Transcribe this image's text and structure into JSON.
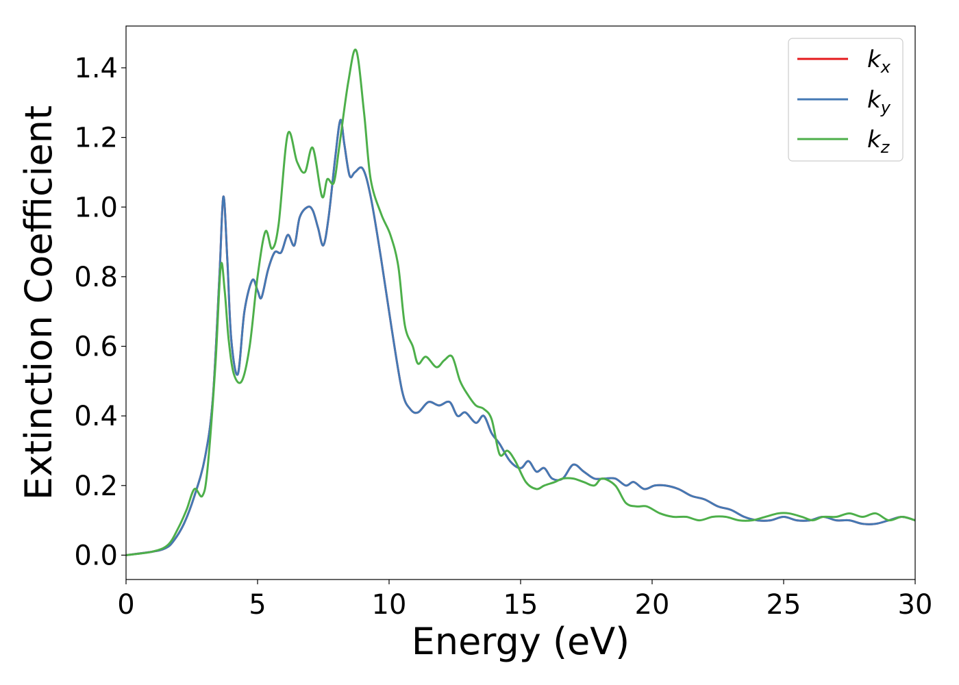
{
  "chart_data": {
    "type": "line",
    "title": "",
    "xlabel": "Energy (eV)",
    "ylabel": "Extinction Coefficient",
    "xlim": [
      0,
      30
    ],
    "ylim": [
      -0.07,
      1.52
    ],
    "xticks": [
      0,
      5,
      10,
      15,
      20,
      25,
      30
    ],
    "xtick_labels": [
      "0",
      "5",
      "10",
      "15",
      "20",
      "25",
      "30"
    ],
    "yticks": [
      0.0,
      0.2,
      0.4,
      0.6,
      0.8,
      1.0,
      1.2,
      1.4
    ],
    "ytick_labels": [
      "0.0",
      "0.2",
      "0.4",
      "0.6",
      "0.8",
      "1.0",
      "1.2",
      "1.4"
    ],
    "grid": false,
    "legend_position": "top-right",
    "series": [
      {
        "name": "k",
        "subscript": "x",
        "color": "#e41a1c",
        "x": [
          0,
          1,
          1.5,
          1.8,
          2.2,
          2.6,
          3.0,
          3.3,
          3.55,
          3.7,
          3.85,
          4.0,
          4.25,
          4.5,
          4.8,
          5.0,
          5.15,
          5.4,
          5.65,
          5.9,
          6.15,
          6.4,
          6.6,
          6.9,
          7.1,
          7.3,
          7.5,
          7.7,
          7.95,
          8.15,
          8.3,
          8.5,
          8.7,
          9.0,
          9.3,
          9.7,
          10.1,
          10.5,
          10.8,
          11.1,
          11.5,
          11.9,
          12.3,
          12.6,
          12.9,
          13.3,
          13.6,
          13.9,
          14.2,
          14.6,
          15.0,
          15.3,
          15.6,
          15.9,
          16.2,
          16.6,
          17.0,
          17.4,
          17.8,
          18.2,
          18.6,
          19.0,
          19.3,
          19.7,
          20.1,
          20.5,
          21.0,
          21.5,
          22.0,
          22.5,
          23.0,
          23.5,
          24.0,
          24.5,
          25.0,
          25.5,
          26.0,
          26.5,
          27.0,
          27.5,
          28.0,
          28.5,
          29.0,
          29.5,
          30.0
        ],
        "y": [
          0,
          0.01,
          0.02,
          0.04,
          0.09,
          0.17,
          0.28,
          0.45,
          0.8,
          1.03,
          0.85,
          0.62,
          0.52,
          0.7,
          0.79,
          0.76,
          0.74,
          0.82,
          0.87,
          0.87,
          0.92,
          0.89,
          0.97,
          1.0,
          0.99,
          0.94,
          0.89,
          0.97,
          1.14,
          1.25,
          1.18,
          1.09,
          1.1,
          1.11,
          1.03,
          0.85,
          0.65,
          0.47,
          0.42,
          0.41,
          0.44,
          0.43,
          0.44,
          0.4,
          0.41,
          0.38,
          0.4,
          0.35,
          0.32,
          0.27,
          0.25,
          0.27,
          0.24,
          0.25,
          0.22,
          0.22,
          0.26,
          0.24,
          0.22,
          0.22,
          0.22,
          0.2,
          0.21,
          0.19,
          0.2,
          0.2,
          0.19,
          0.17,
          0.16,
          0.14,
          0.13,
          0.11,
          0.1,
          0.1,
          0.11,
          0.1,
          0.1,
          0.11,
          0.1,
          0.1,
          0.09,
          0.09,
          0.1,
          0.11,
          0.1
        ]
      },
      {
        "name": "k",
        "subscript": "y",
        "color": "#4479b4",
        "x": [
          0,
          1,
          1.5,
          1.8,
          2.2,
          2.6,
          3.0,
          3.3,
          3.55,
          3.7,
          3.85,
          4.0,
          4.25,
          4.5,
          4.8,
          5.0,
          5.15,
          5.4,
          5.65,
          5.9,
          6.15,
          6.4,
          6.6,
          6.9,
          7.1,
          7.3,
          7.5,
          7.7,
          7.95,
          8.15,
          8.3,
          8.5,
          8.7,
          9.0,
          9.3,
          9.7,
          10.1,
          10.5,
          10.8,
          11.1,
          11.5,
          11.9,
          12.3,
          12.6,
          12.9,
          13.3,
          13.6,
          13.9,
          14.2,
          14.6,
          15.0,
          15.3,
          15.6,
          15.9,
          16.2,
          16.6,
          17.0,
          17.4,
          17.8,
          18.2,
          18.6,
          19.0,
          19.3,
          19.7,
          20.1,
          20.5,
          21.0,
          21.5,
          22.0,
          22.5,
          23.0,
          23.5,
          24.0,
          24.5,
          25.0,
          25.5,
          26.0,
          26.5,
          27.0,
          27.5,
          28.0,
          28.5,
          29.0,
          29.5,
          30.0
        ],
        "y": [
          0,
          0.01,
          0.02,
          0.04,
          0.09,
          0.17,
          0.28,
          0.45,
          0.8,
          1.03,
          0.85,
          0.62,
          0.52,
          0.7,
          0.79,
          0.76,
          0.74,
          0.82,
          0.87,
          0.87,
          0.92,
          0.89,
          0.97,
          1.0,
          0.99,
          0.94,
          0.89,
          0.97,
          1.14,
          1.25,
          1.18,
          1.09,
          1.1,
          1.11,
          1.03,
          0.85,
          0.65,
          0.47,
          0.42,
          0.41,
          0.44,
          0.43,
          0.44,
          0.4,
          0.41,
          0.38,
          0.4,
          0.35,
          0.32,
          0.27,
          0.25,
          0.27,
          0.24,
          0.25,
          0.22,
          0.22,
          0.26,
          0.24,
          0.22,
          0.22,
          0.22,
          0.2,
          0.21,
          0.19,
          0.2,
          0.2,
          0.19,
          0.17,
          0.16,
          0.14,
          0.13,
          0.11,
          0.1,
          0.1,
          0.11,
          0.1,
          0.1,
          0.11,
          0.1,
          0.1,
          0.09,
          0.09,
          0.1,
          0.11,
          0.1
        ]
      },
      {
        "name": "k",
        "subscript": "z",
        "color": "#4daf4a",
        "x": [
          0,
          1,
          1.6,
          2.0,
          2.3,
          2.6,
          2.9,
          3.1,
          3.4,
          3.6,
          3.75,
          3.9,
          4.1,
          4.4,
          4.7,
          5.0,
          5.3,
          5.55,
          5.8,
          6.15,
          6.5,
          6.8,
          7.1,
          7.45,
          7.65,
          7.9,
          8.1,
          8.45,
          8.75,
          9.05,
          9.3,
          9.7,
          10.05,
          10.35,
          10.6,
          10.9,
          11.1,
          11.4,
          11.8,
          12.1,
          12.4,
          12.7,
          13.0,
          13.3,
          13.6,
          13.9,
          14.2,
          14.5,
          14.8,
          15.2,
          15.6,
          15.9,
          16.3,
          16.6,
          17.0,
          17.4,
          17.8,
          18.1,
          18.6,
          19.0,
          19.4,
          19.8,
          20.3,
          20.8,
          21.3,
          21.8,
          22.3,
          22.8,
          23.3,
          23.8,
          24.3,
          24.8,
          25.2,
          25.7,
          26.1,
          26.5,
          27.0,
          27.5,
          28.0,
          28.5,
          29.0,
          29.5,
          30.0
        ],
        "y": [
          0,
          0.01,
          0.03,
          0.08,
          0.13,
          0.19,
          0.17,
          0.25,
          0.55,
          0.83,
          0.76,
          0.62,
          0.52,
          0.5,
          0.6,
          0.8,
          0.93,
          0.88,
          0.95,
          1.21,
          1.13,
          1.1,
          1.17,
          1.03,
          1.08,
          1.07,
          1.17,
          1.36,
          1.45,
          1.27,
          1.08,
          0.98,
          0.92,
          0.83,
          0.66,
          0.6,
          0.55,
          0.57,
          0.54,
          0.56,
          0.57,
          0.5,
          0.46,
          0.43,
          0.42,
          0.39,
          0.29,
          0.3,
          0.27,
          0.21,
          0.19,
          0.2,
          0.21,
          0.22,
          0.22,
          0.21,
          0.2,
          0.22,
          0.2,
          0.15,
          0.14,
          0.14,
          0.12,
          0.11,
          0.11,
          0.1,
          0.11,
          0.11,
          0.1,
          0.1,
          0.11,
          0.12,
          0.12,
          0.11,
          0.1,
          0.11,
          0.11,
          0.12,
          0.11,
          0.12,
          0.1,
          0.11,
          0.1
        ]
      }
    ]
  }
}
